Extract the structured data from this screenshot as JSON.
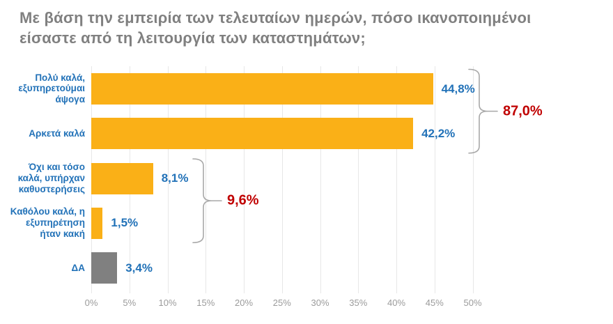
{
  "title": "Με βάση την εμπειρία των τελευταίων ημερών, πόσο ικανοποιημένοι είσαστε από τη λειτουργία των καταστημάτων;",
  "chart_data": {
    "type": "bar",
    "orientation": "horizontal",
    "title": "Με βάση την εμπειρία των τελευταίων ημερών, πόσο ικανοποιημένοι είσαστε από τη λειτουργία των καταστημάτων;",
    "categories": [
      "Πολύ καλά, εξυπηρετούμαι άψογα",
      "Αρκετά καλά",
      "Όχι και τόσο καλά, υπήρχαν καθυστερήσεις",
      "Καθόλου καλά, η εξυπηρέτηση ήταν κακή",
      "ΔΑ"
    ],
    "values": [
      44.8,
      42.2,
      8.1,
      1.5,
      3.4
    ],
    "value_labels": [
      "44,8%",
      "42,2%",
      "8,1%",
      "1,5%",
      "3,4%"
    ],
    "bar_colors": [
      "#FAB017",
      "#FAB017",
      "#FAB017",
      "#FAB017",
      "#808080"
    ],
    "xlim": [
      0,
      50
    ],
    "x_ticks": [
      "0%",
      "5%",
      "10%",
      "15%",
      "20%",
      "25%",
      "30%",
      "35%",
      "40%",
      "45%",
      "50%"
    ],
    "grid": true,
    "legend": "none",
    "groups": [
      {
        "label": "87,0%",
        "from_index": 0,
        "to_index": 1
      },
      {
        "label": "9,6%",
        "from_index": 2,
        "to_index": 3
      }
    ]
  },
  "colors": {
    "bar_orange": "#FAB017",
    "bar_gray": "#808080",
    "label_blue": "#2272B8",
    "group_red": "#C00000",
    "title_gray": "#808080",
    "axis_gray": "#9B9B9B",
    "gridline": "#E7E7E7",
    "brace": "#A8A8A8"
  }
}
